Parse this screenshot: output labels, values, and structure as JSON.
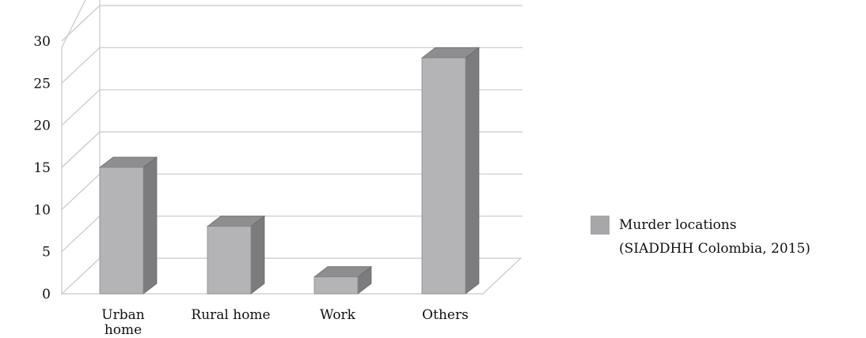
{
  "chart_data": {
    "type": "bar",
    "categories": [
      "Urban home",
      "Rural home",
      "Work",
      "Others"
    ],
    "series": [
      {
        "name": "Murder locations (SIADDHH Colombia, 2015)",
        "values": [
          15,
          8,
          2,
          28
        ]
      }
    ],
    "legend": {
      "line1": "Murder locations",
      "line2": "(SIADDHH Colombia, 2015)",
      "placement": "right"
    },
    "category_labels": [
      [
        "Urban",
        "home"
      ],
      [
        "Rural home"
      ],
      [
        "Work"
      ],
      [
        "Others"
      ]
    ],
    "yticks": [
      "0",
      "5",
      "10",
      "15",
      "20",
      "25",
      "30"
    ],
    "ylim": [
      0,
      30
    ],
    "grid": true,
    "three_d": true,
    "title": "",
    "xlabel": "",
    "ylabel": "",
    "colors": {
      "bar_front": "#b4b4b6",
      "bar_side": "#7c7c7e",
      "bar_top": "#8e8e90"
    }
  }
}
